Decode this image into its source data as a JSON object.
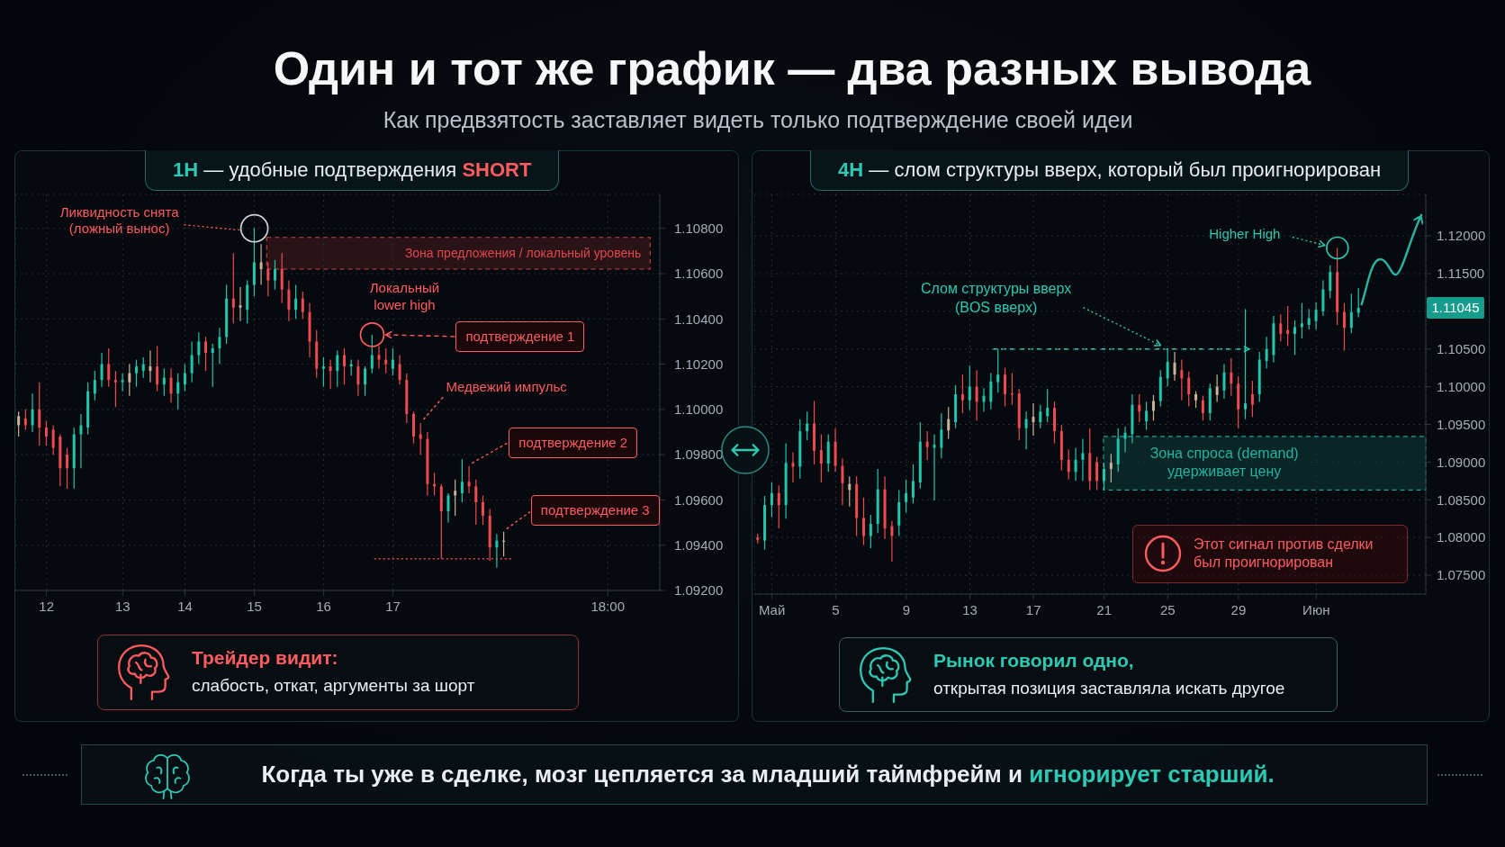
{
  "chart_data": [
    {
      "type": "other",
      "title": "Один и тот же график — два разных вывода",
      "subtitle": "Как предвзятость заставляет видеть только подтверждение своей идеи"
    },
    {
      "type": "candlestick",
      "title": "1H — удобные подтверждения SHORT",
      "categories": [
        null,
        null,
        null,
        null,
        "12",
        null,
        null,
        null,
        null,
        null,
        null,
        null,
        null,
        null,
        null,
        "13",
        null,
        null,
        null,
        null,
        null,
        null,
        null,
        null,
        "14",
        null,
        null,
        null,
        null,
        null,
        null,
        null,
        null,
        null,
        "15",
        null,
        null,
        null,
        null,
        null,
        null,
        null,
        null,
        null,
        "16",
        null,
        null,
        null,
        null,
        null,
        null,
        null,
        null,
        null,
        "17",
        null,
        null,
        null,
        null,
        null,
        null,
        null,
        null,
        null,
        null,
        null,
        null,
        null,
        null,
        null,
        null,
        null,
        null,
        null,
        null,
        null,
        null,
        null,
        null,
        null,
        null,
        null,
        null,
        null,
        null,
        "18:00",
        null,
        null,
        null,
        null,
        null,
        null,
        null
      ],
      "ohlc": [
        [
          1.0993,
          1.0999,
          1.0988,
          1.0997
        ],
        [
          1.0996,
          1.1,
          1.0991,
          1.0993
        ],
        [
          1.0993,
          1.1007,
          1.099,
          1.1
        ],
        [
          1.1,
          1.1012,
          1.0984,
          1.0992
        ],
        [
          1.0992,
          1.0995,
          1.0984,
          1.0988
        ],
        [
          1.0991,
          1.0993,
          1.098,
          1.0983
        ],
        [
          1.0988,
          1.0989,
          1.0966,
          1.0974
        ],
        [
          1.098,
          1.0983,
          1.0965,
          1.0974
        ],
        [
          1.0974,
          1.0992,
          1.0965,
          1.0989
        ],
        [
          1.0989,
          1.0998,
          1.0974,
          1.0993
        ],
        [
          1.0992,
          1.1012,
          1.0989,
          1.1008
        ],
        [
          1.1007,
          1.1017,
          1.1004,
          1.1013
        ],
        [
          1.1013,
          1.1025,
          1.101,
          1.102
        ],
        [
          1.102,
          1.1027,
          1.101,
          1.1013
        ],
        [
          1.1013,
          1.1017,
          1.1001,
          1.1012
        ],
        [
          1.1012,
          1.1016,
          1.1008,
          1.1013
        ],
        [
          1.1012,
          1.102,
          1.1006,
          1.1016
        ],
        [
          1.1016,
          1.1022,
          1.101,
          1.1019
        ],
        [
          1.1017,
          1.1023,
          1.1014,
          1.102
        ],
        [
          1.1019,
          1.1026,
          1.1012,
          1.1017
        ],
        [
          1.1019,
          1.1028,
          1.1008,
          1.1011
        ],
        [
          1.1011,
          1.1018,
          1.1006,
          1.1014
        ],
        [
          1.1014,
          1.1018,
          1.1003,
          1.1007
        ],
        [
          1.1007,
          1.1016,
          1.1,
          1.1012
        ],
        [
          1.1011,
          1.102,
          1.1008,
          1.1016
        ],
        [
          1.1016,
          1.103,
          1.1012,
          1.1024
        ],
        [
          1.1024,
          1.1034,
          1.102,
          1.103
        ],
        [
          1.103,
          1.1032,
          1.1017,
          1.1025
        ],
        [
          1.1025,
          1.1029,
          1.101,
          1.1027
        ],
        [
          1.1027,
          1.1036,
          1.102,
          1.1032
        ],
        [
          1.1032,
          1.1055,
          1.1029,
          1.1049
        ],
        [
          1.1049,
          1.1069,
          1.1038,
          1.1045
        ],
        [
          1.1045,
          1.1054,
          1.1039,
          1.1046
        ],
        [
          1.1044,
          1.1057,
          1.1038,
          1.1055
        ],
        [
          1.1055,
          1.108,
          1.105,
          1.1065
        ],
        [
          1.1065,
          1.1073,
          1.1055,
          1.1062
        ],
        [
          1.1062,
          1.1065,
          1.105,
          1.1057
        ],
        [
          1.1057,
          1.1066,
          1.1053,
          1.1062
        ],
        [
          1.1062,
          1.1069,
          1.1047,
          1.1053
        ],
        [
          1.1053,
          1.1057,
          1.1039,
          1.1044
        ],
        [
          1.1044,
          1.1055,
          1.104,
          1.1049
        ],
        [
          1.1049,
          1.1052,
          1.104,
          1.1043
        ],
        [
          1.1043,
          1.1047,
          1.1023,
          1.103
        ],
        [
          1.103,
          1.1035,
          1.1014,
          1.1018
        ],
        [
          1.1018,
          1.1023,
          1.101,
          1.1019
        ],
        [
          1.1019,
          1.1022,
          1.1009,
          1.1017
        ],
        [
          1.1017,
          1.1026,
          1.101,
          1.1024
        ],
        [
          1.1024,
          1.1027,
          1.1011,
          1.1019
        ],
        [
          1.1019,
          1.1022,
          1.1015,
          1.102
        ],
        [
          1.1019,
          1.1022,
          1.1006,
          1.1011
        ],
        [
          1.1011,
          1.1019,
          1.1006,
          1.1018
        ],
        [
          1.1018,
          1.1033,
          1.1016,
          1.1024
        ],
        [
          1.1024,
          1.1028,
          1.1018,
          1.1022
        ],
        [
          1.1022,
          1.1027,
          1.1016,
          1.102
        ],
        [
          1.1018,
          1.1027,
          1.1015,
          1.1022
        ],
        [
          1.102,
          1.1024,
          1.1011,
          1.1013
        ],
        [
          1.1013,
          1.1016,
          1.0994,
          1.0998
        ],
        [
          1.0998,
          1.0999,
          1.0985,
          1.0988
        ],
        [
          1.0989,
          1.0994,
          1.098,
          1.0987
        ],
        [
          1.0987,
          1.099,
          1.0962,
          1.0967
        ],
        [
          1.0967,
          1.0972,
          1.0962,
          1.0966
        ],
        [
          1.0966,
          1.0967,
          1.0934,
          1.0955
        ],
        [
          1.0955,
          1.0963,
          1.095,
          1.0962
        ],
        [
          1.0962,
          1.0969,
          1.0953,
          1.0964
        ],
        [
          1.0963,
          1.0978,
          1.0959,
          1.0968
        ],
        [
          1.0968,
          1.0975,
          1.0963,
          1.0966
        ],
        [
          1.0966,
          1.0969,
          1.0949,
          1.0959
        ],
        [
          1.0959,
          1.0962,
          1.0949,
          1.0953
        ],
        [
          1.0953,
          1.0956,
          1.0933,
          1.0939
        ],
        [
          1.0939,
          1.0945,
          1.093,
          1.0942
        ],
        [
          1.0942,
          1.0946,
          1.0935,
          1.0942
        ],
        null,
        null,
        null,
        null,
        null,
        null,
        null,
        null,
        null,
        null,
        null,
        null,
        null,
        null,
        null,
        null,
        null,
        null,
        null,
        null,
        null,
        null
      ],
      "colors": [
        "#c9b49a",
        "#ef4a50",
        "#1fc7ac",
        "#ef4a50",
        "#ef4a50",
        "#ef4a50",
        "#ef4a50",
        "#ef4a50",
        "#1fc7ac",
        "#1fc7ac",
        "#1fc7ac",
        "#1fc7ac",
        "#1fc7ac",
        "#ef4a50",
        "#ef4a50",
        "#1fc7ac",
        "#c9b49a",
        "#1fc7ac",
        "#1fc7ac",
        "#c9b49a",
        "#ef4a50",
        "#1fc7ac",
        "#ef4a50",
        "#1fc7ac",
        "#1fc7ac",
        "#1fc7ac",
        "#1fc7ac",
        "#ef4a50",
        "#1fc7ac",
        "#1fc7ac",
        "#1fc7ac",
        "#ef4a50",
        "#c9b49a",
        "#1fc7ac",
        "#1fc7ac",
        "#c9b49a",
        "#ef4a50",
        "#1fc7ac",
        "#ef4a50",
        "#ef4a50",
        "#1fc7ac",
        "#ef4a50",
        "#ef4a50",
        "#ef4a50",
        "#1fc7ac",
        "#ef4a50",
        "#1fc7ac",
        "#ef4a50",
        "#1fc7ac",
        "#ef4a50",
        "#1fc7ac",
        "#1fc7ac",
        "#ef4a50",
        "#ef4a50",
        "#1fc7ac",
        "#ef4a50",
        "#ef4a50",
        "#ef4a50",
        "#ef4a50",
        "#ef4a50",
        "#ef4a50",
        "#ef4a50",
        "#1fc7ac",
        "#c9b49a",
        "#1fc7ac",
        "#ef4a50",
        "#ef4a50",
        "#ef4a50",
        "#ef4a50",
        "#1fc7ac",
        "#c9b49a",
        null,
        null,
        null,
        null,
        null,
        null,
        null,
        null,
        null,
        null,
        null,
        null,
        null,
        null,
        null,
        null,
        null,
        null,
        null,
        null,
        null,
        null
      ],
      "ylim": [
        1.092,
        1.1095
      ],
      "yticks": [
        {
          "value": 1.092,
          "label": "1.09200"
        },
        {
          "value": 1.094,
          "label": "1.09400"
        },
        {
          "value": 1.096,
          "label": "1.09600"
        },
        {
          "value": 1.098,
          "label": "1.09800"
        },
        {
          "value": 1.1,
          "label": "1.10000"
        },
        {
          "value": 1.102,
          "label": "1.10200"
        },
        {
          "value": 1.104,
          "label": "1.10400"
        },
        {
          "value": 1.106,
          "label": "1.10600"
        },
        {
          "value": 1.108,
          "label": "1.10800"
        }
      ],
      "grid": true,
      "bands": [
        {
          "axis": "y",
          "from": 1.1062,
          "to": 1.1076,
          "label": "Зона предложения / локальный уровень",
          "color": "#e0474c"
        }
      ],
      "ref_lines": [
        {
          "axis": "y",
          "value": 1.0934,
          "color": "#e0474c",
          "line_style": "dotted"
        }
      ],
      "annotations": [
        "Ликвидность снята (ложный вынос)",
        "Локальный lower high",
        "подтверждение 1",
        "Медвежий импульс",
        "подтверждение 2",
        "подтверждение 3",
        "Трейдер видит:",
        "слабость, откат, аргументы за шорт"
      ]
    },
    {
      "type": "candlestick",
      "title": "4H — слом структуры вверх, который был проигнорирован",
      "categories": [
        null,
        null,
        "Май",
        null,
        null,
        null,
        null,
        null,
        null,
        null,
        null,
        "5",
        null,
        null,
        null,
        null,
        null,
        null,
        null,
        null,
        null,
        "9",
        null,
        null,
        null,
        null,
        null,
        null,
        null,
        null,
        "13",
        null,
        null,
        null,
        null,
        null,
        null,
        null,
        null,
        "17",
        null,
        null,
        null,
        null,
        null,
        null,
        null,
        null,
        null,
        "21",
        null,
        null,
        null,
        null,
        null,
        null,
        null,
        null,
        "25",
        null,
        null,
        null,
        null,
        null,
        null,
        null,
        null,
        null,
        "29",
        null,
        null,
        null,
        null,
        null,
        null,
        null,
        null,
        null,
        null,
        "Июн",
        null,
        null,
        null,
        null,
        null,
        null,
        null,
        null,
        null,
        null,
        null,
        null,
        null,
        null,
        null
      ],
      "ohlc": [
        [
          1.08,
          1.0805,
          1.0792,
          1.0797
        ],
        [
          1.0796,
          1.0855,
          1.0784,
          1.0843
        ],
        [
          1.0843,
          1.0873,
          1.0827,
          1.0859
        ],
        [
          1.0859,
          1.0869,
          1.0812,
          1.0843
        ],
        [
          1.0843,
          1.0925,
          1.0825,
          1.0899
        ],
        [
          1.0899,
          1.0913,
          1.0873,
          1.0894
        ],
        [
          1.0894,
          1.0957,
          1.0878,
          1.0941
        ],
        [
          1.0941,
          1.0967,
          1.0929,
          1.0951
        ],
        [
          1.0951,
          1.0981,
          1.0897,
          1.0915
        ],
        [
          1.0916,
          1.0937,
          1.0873,
          1.0898
        ],
        [
          1.0898,
          1.0937,
          1.0887,
          1.0927
        ],
        [
          1.0927,
          1.0945,
          1.0887,
          1.0895
        ],
        [
          1.0895,
          1.0905,
          1.0843,
          1.0872
        ],
        [
          1.0871,
          1.0881,
          1.0841,
          1.0863
        ],
        [
          1.0871,
          1.0881,
          1.0802,
          1.0826
        ],
        [
          1.0826,
          1.0853,
          1.079,
          1.0802
        ],
        [
          1.0802,
          1.083,
          1.0786,
          1.0818
        ],
        [
          1.0818,
          1.0891,
          1.0806,
          1.0864
        ],
        [
          1.0864,
          1.0881,
          1.0798,
          1.0812
        ],
        [
          1.0815,
          1.0822,
          1.0768,
          1.0802
        ],
        [
          1.0816,
          1.0863,
          1.0802,
          1.0847
        ],
        [
          1.0847,
          1.0877,
          1.0833,
          1.0859
        ],
        [
          1.0853,
          1.0897,
          1.0845,
          1.0875
        ],
        [
          1.0873,
          1.0953,
          1.0865,
          1.0927
        ],
        [
          1.0927,
          1.0941,
          1.0903,
          1.092
        ],
        [
          1.0919,
          1.0937,
          1.0849,
          1.0923
        ],
        [
          1.0919,
          1.0965,
          1.0905,
          1.0943
        ],
        [
          1.0942,
          1.0973,
          1.0931,
          1.0957
        ],
        [
          1.0953,
          1.1002,
          1.0945,
          1.099
        ],
        [
          1.099,
          1.1016,
          1.0965,
          1.0982
        ],
        [
          1.0982,
          1.1028,
          1.0969,
          1.1
        ],
        [
          1.1,
          1.1022,
          1.0955,
          1.098
        ],
        [
          1.098,
          1.0998,
          1.0967,
          1.0988
        ],
        [
          1.098,
          1.1018,
          1.097,
          1.1007
        ],
        [
          1.1006,
          1.105,
          1.0992,
          1.1016
        ],
        [
          1.1016,
          1.1025,
          1.0974,
          1.099
        ],
        [
          1.0991,
          1.1018,
          1.0976,
          1.099
        ],
        [
          1.0991,
          1.0997,
          1.0929,
          1.0945
        ],
        [
          1.0945,
          1.0967,
          1.0917,
          1.0957
        ],
        [
          1.096,
          1.0978,
          1.0935,
          1.0953
        ],
        [
          1.0953,
          1.0976,
          1.0945,
          1.0967
        ],
        [
          1.0961,
          1.0997,
          1.0953,
          1.0972
        ],
        [
          1.0972,
          1.098,
          1.0925,
          1.0941
        ],
        [
          1.0941,
          1.0949,
          1.0889,
          1.0903
        ],
        [
          1.0903,
          1.0917,
          1.0877,
          1.0887
        ],
        [
          1.0887,
          1.0919,
          1.0875,
          1.0903
        ],
        [
          1.0903,
          1.0931,
          1.0875,
          1.0912
        ],
        [
          1.0912,
          1.0945,
          1.0863,
          1.0875
        ],
        [
          1.09,
          1.0907,
          1.0863,
          1.0875
        ],
        [
          1.0875,
          1.0899,
          1.0863,
          1.0891
        ],
        [
          1.0891,
          1.0911,
          1.0873,
          1.0899
        ],
        [
          1.0897,
          1.0945,
          1.0887,
          1.0931
        ],
        [
          1.0931,
          1.0947,
          1.0913,
          1.0939
        ],
        [
          1.0937,
          1.099,
          1.0925,
          1.0976
        ],
        [
          1.0976,
          1.099,
          1.0953,
          1.0967
        ],
        [
          1.0954,
          1.098,
          1.0943,
          1.0968
        ],
        [
          1.0968,
          1.0989,
          1.0955,
          1.0981
        ],
        [
          1.0981,
          1.1022,
          1.0974,
          1.1013
        ],
        [
          1.1011,
          1.105,
          1.1,
          1.1033
        ],
        [
          1.1032,
          1.1046,
          1.1008,
          1.1016
        ],
        [
          1.1022,
          1.1036,
          1.0982,
          1.1011
        ],
        [
          1.1012,
          1.102,
          1.0974,
          1.099
        ],
        [
          1.099,
          1.0994,
          1.0972,
          1.0982
        ],
        [
          1.0982,
          1.0988,
          1.0955,
          1.0965
        ],
        [
          1.0965,
          1.1004,
          1.0955,
          1.0998
        ],
        [
          1.1,
          1.1016,
          1.098,
          1.0989
        ],
        [
          1.0995,
          1.103,
          1.0984,
          1.1019
        ],
        [
          1.1019,
          1.1038,
          1.0988,
          1.1004
        ],
        [
          1.1004,
          1.1014,
          1.0945,
          1.097
        ],
        [
          1.097,
          1.1103,
          1.0957,
          1.0978
        ],
        [
          1.099,
          1.1008,
          1.096,
          1.0976
        ],
        [
          1.099,
          1.1046,
          1.098,
          1.1036
        ],
        [
          1.1034,
          1.1066,
          1.1024,
          1.105
        ],
        [
          1.1042,
          1.1094,
          1.1032,
          1.1084
        ],
        [
          1.1084,
          1.1096,
          1.106,
          1.107
        ],
        [
          1.1075,
          1.1107,
          1.1054,
          1.107
        ],
        [
          1.107,
          1.1088,
          1.1042,
          1.1079
        ],
        [
          1.1079,
          1.1111,
          1.1064,
          1.1084
        ],
        [
          1.1082,
          1.1103,
          1.1076,
          1.1091
        ],
        [
          1.1087,
          1.1112,
          1.1076,
          1.1102
        ],
        [
          1.11,
          1.1141,
          1.1094,
          1.1129
        ],
        [
          1.1127,
          1.1161,
          1.1117,
          1.1152
        ],
        [
          1.1152,
          1.1184,
          1.1082,
          1.1099
        ],
        [
          1.1099,
          1.1111,
          1.1048,
          1.1078
        ],
        [
          1.1078,
          1.1123,
          1.1071,
          1.1099
        ],
        [
          1.1098,
          1.1131,
          1.1092,
          1.11045
        ],
        null,
        null,
        null,
        null,
        null,
        null,
        null,
        null,
        null
      ],
      "colors": [
        "#ef4a50",
        "#1fc7ac",
        "#1fc7ac",
        "#ef4a50",
        "#1fc7ac",
        "#ef4a50",
        "#1fc7ac",
        "#1fc7ac",
        "#ef4a50",
        "#ef4a50",
        "#1fc7ac",
        "#ef4a50",
        "#ef4a50",
        "#c9b49a",
        "#ef4a50",
        "#ef4a50",
        "#1fc7ac",
        "#1fc7ac",
        "#ef4a50",
        "#ef4a50",
        "#1fc7ac",
        "#1fc7ac",
        "#1fc7ac",
        "#1fc7ac",
        "#ef4a50",
        "#1fc7ac",
        "#1fc7ac",
        "#c9b49a",
        "#1fc7ac",
        "#ef4a50",
        "#1fc7ac",
        "#ef4a50",
        "#1fc7ac",
        "#1fc7ac",
        "#1fc7ac",
        "#ef4a50",
        "#ef4a50",
        "#ef4a50",
        "#1fc7ac",
        "#c9b49a",
        "#1fc7ac",
        "#1fc7ac",
        "#ef4a50",
        "#ef4a50",
        "#ef4a50",
        "#1fc7ac",
        "#1fc7ac",
        "#ef4a50",
        "#ef4a50",
        "#1fc7ac",
        "#c9b49a",
        "#1fc7ac",
        "#1fc7ac",
        "#1fc7ac",
        "#ef4a50",
        "#1fc7ac",
        "#c9b49a",
        "#1fc7ac",
        "#1fc7ac",
        "#c9b49a",
        "#ef4a50",
        "#ef4a50",
        "#c9b49a",
        "#ef4a50",
        "#1fc7ac",
        "#c9b49a",
        "#1fc7ac",
        "#ef4a50",
        "#ef4a50",
        "#1fc7ac",
        "#ef4a50",
        "#1fc7ac",
        "#1fc7ac",
        "#1fc7ac",
        "#ef4a50",
        "#ef4a50",
        "#1fc7ac",
        "#1fc7ac",
        "#1fc7ac",
        "#1fc7ac",
        "#1fc7ac",
        "#1fc7ac",
        "#ef4a50",
        "#ef4a50",
        "#1fc7ac",
        "#1fc7ac",
        null,
        null,
        null,
        null,
        null,
        null,
        null,
        null,
        null
      ],
      "ylim": [
        1.0725,
        1.1255
      ],
      "yticks": [
        {
          "value": 1.075,
          "label": "1.07500"
        },
        {
          "value": 1.08,
          "label": "1.08000"
        },
        {
          "value": 1.085,
          "label": "1.08500"
        },
        {
          "value": 1.09,
          "label": "1.09000"
        },
        {
          "value": 1.095,
          "label": "1.09500"
        },
        {
          "value": 1.1,
          "label": "1.10000"
        },
        {
          "value": 1.105,
          "label": "1.10500"
        },
        {
          "value": 1.11,
          "label": null
        },
        {
          "value": 1.115,
          "label": "1.11500"
        },
        {
          "value": 1.12,
          "label": "1.12000"
        }
      ],
      "grid": true,
      "bands": [
        {
          "axis": "y",
          "from": 1.0863,
          "to": 1.0934,
          "label": "Зона спроса (demand) удерживает цену",
          "color": "#22b3a2"
        }
      ],
      "ref_lines": [
        {
          "axis": "y",
          "value": 1.105,
          "label": "Слом структуры вверх (BOS вверх)",
          "color": "#2cc9b4",
          "line_style": "dashed"
        }
      ],
      "annotations": [
        "Higher High",
        "1.11045",
        "Этот сигнал против сделки был проигнорирован",
        "Рынок говорил одно,",
        "открытая позиция заставляла искать другое"
      ]
    },
    {
      "type": "other",
      "annotations": [
        "Когда ты уже в сделке, мозг цепляется за младший таймфрейм и",
        "игнорирует старший."
      ]
    }
  ]
}
